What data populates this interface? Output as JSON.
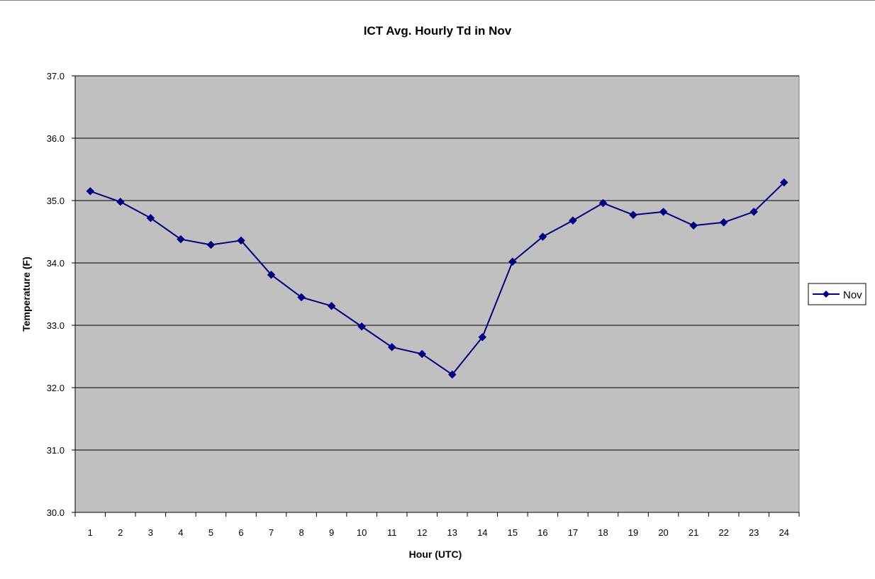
{
  "chart_data": {
    "type": "line",
    "title": "ICT Avg. Hourly Td in Nov",
    "xlabel": "Hour (UTC)",
    "ylabel": "Temperature (F)",
    "categories": [
      "1",
      "2",
      "3",
      "4",
      "5",
      "6",
      "7",
      "8",
      "9",
      "10",
      "11",
      "12",
      "13",
      "14",
      "15",
      "16",
      "17",
      "18",
      "19",
      "20",
      "21",
      "22",
      "23",
      "24"
    ],
    "ylim": [
      30.0,
      37.0
    ],
    "yticks": [
      "30.0",
      "31.0",
      "32.0",
      "33.0",
      "34.0",
      "35.0",
      "36.0",
      "37.0"
    ],
    "grid": true,
    "legend_position": "right",
    "series": [
      {
        "name": "Nov",
        "color": "#000080",
        "marker": "diamond",
        "values": [
          35.15,
          34.98,
          34.72,
          34.38,
          34.29,
          34.36,
          33.81,
          33.45,
          33.31,
          32.98,
          32.65,
          32.54,
          32.21,
          32.81,
          34.02,
          34.42,
          34.68,
          34.96,
          34.77,
          34.82,
          34.6,
          34.65,
          34.82,
          35.29
        ]
      }
    ],
    "colors": {
      "plot_background": "#c0c0c0",
      "gridline": "#000000"
    }
  }
}
